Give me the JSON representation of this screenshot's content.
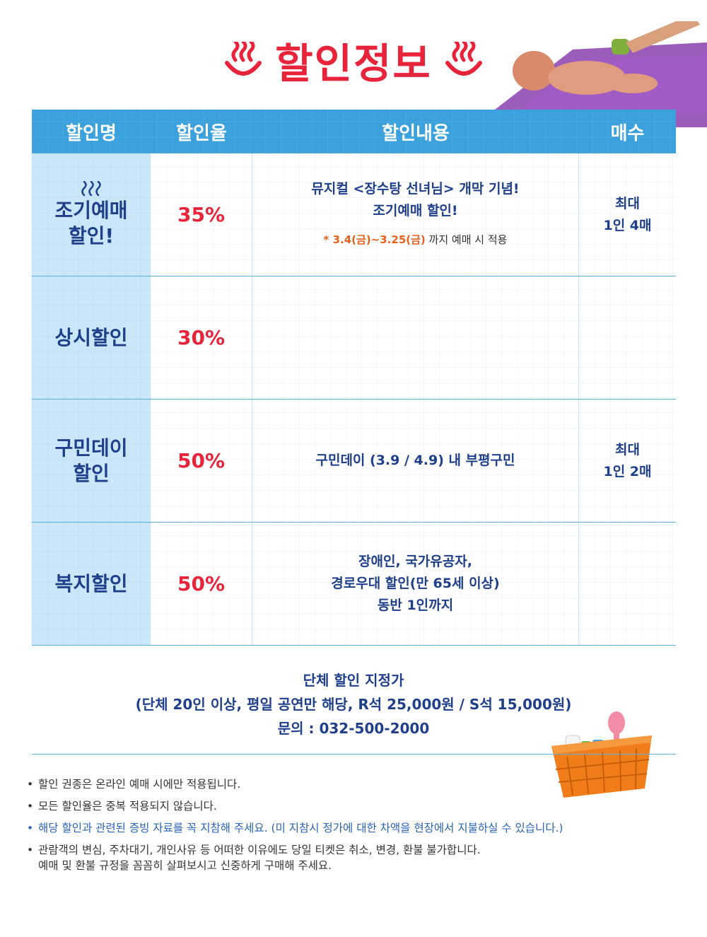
{
  "header": {
    "title": "할인정보"
  },
  "table": {
    "headers": [
      "할인명",
      "할인율",
      "할인내용",
      "매수"
    ],
    "rows": [
      {
        "name_lines": [
          "조기예매",
          "할인!"
        ],
        "rate": "35%",
        "detail_lines": [
          "뮤지컬 <장수탕 선녀님> 개막 기념!",
          "조기예매 할인!"
        ],
        "note_prefix": "* 3.4(금)~3.25(금)",
        "note_suffix": " 까지 예매 시 적용",
        "qty_lines": [
          "최대",
          "1인 4매"
        ]
      },
      {
        "name_lines": [
          "상시할인"
        ],
        "rate": "30%",
        "detail_lines": [],
        "qty_lines": []
      },
      {
        "name_lines": [
          "구민데이",
          "할인"
        ],
        "rate": "50%",
        "detail_lines": [
          "구민데이 (3.9 / 4.9) 내 부평구민"
        ],
        "qty_lines": [
          "최대",
          "1인 2매"
        ]
      },
      {
        "name_lines": [
          "복지할인"
        ],
        "rate": "50%",
        "detail_lines": [
          "장애인, 국가유공자,",
          "경로우대 할인(만 65세 이상)",
          "동반 1인까지"
        ],
        "qty_lines": []
      }
    ]
  },
  "group": {
    "line1": "단체 할인 지정가",
    "line2": "(단체 20인 이상, 평일 공연만 해당, R석 25,000원 / S석 15,000원)",
    "line3": "문의 : 032-500-2000"
  },
  "notes": [
    {
      "text": "할인 권종은 온라인 예매 시에만 적용됩니다."
    },
    {
      "text": "모든 할인율은 중복 적용되지 않습니다."
    },
    {
      "text": "해당 할인과 관련된 증빙 자료를 꼭 지참해 주세요. (미 지참시 정가에 대한 차액을 현장에서 지불하실 수 있습니다.)"
    },
    {
      "text": "관람객의 변심, 주차대기, 개인사유 등 어떠한 이유에도 당일 티켓은 취소, 변경, 환불 불가합니다.",
      "text2": "예매 및 환불 규정을 꼼꼼히 살펴보시고 신중하게 구매해 주세요."
    }
  ],
  "colors": {
    "accent_red": "#e8243b",
    "header_blue": "#3aa1dd",
    "name_bg": "#c9e7f8",
    "text_navy": "#1f3f8a",
    "note_orange": "#e8601a"
  },
  "icons": [
    "steam-icon",
    "basket-icon",
    "bath-mat-illustration"
  ]
}
